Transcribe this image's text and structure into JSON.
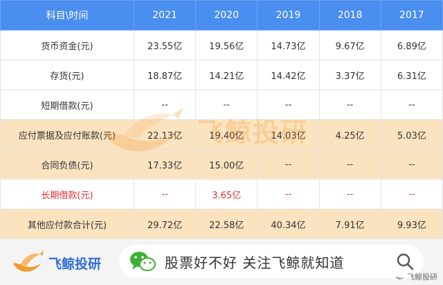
{
  "table": {
    "header": [
      "科目\\时间",
      "2021",
      "2020",
      "2019",
      "2018",
      "2017"
    ],
    "rows": [
      {
        "label": "货币资金(元)",
        "values": [
          "23.55亿",
          "19.56亿",
          "14.73亿",
          "9.67亿",
          "6.89亿"
        ],
        "style": "normal"
      },
      {
        "label": "存货(元)",
        "values": [
          "18.87亿",
          "14.21亿",
          "14.42亿",
          "3.37亿",
          "6.31亿"
        ],
        "style": "normal"
      },
      {
        "label": "短期借款(元)",
        "values": [
          "--",
          "--",
          "--",
          "--",
          "--"
        ],
        "style": "normal"
      },
      {
        "label": "应付票据及应付账款(元)",
        "values": [
          "22.13亿",
          "19.40亿",
          "14.03亿",
          "4.25亿",
          "5.03亿"
        ],
        "style": "alt"
      },
      {
        "label": "合同负债(元)",
        "values": [
          "17.33亿",
          "15.00亿",
          "--",
          "--",
          "--"
        ],
        "style": "alt"
      },
      {
        "label": "长期借款(元)",
        "values": [
          "--",
          "3.65亿",
          "--",
          "--",
          "--"
        ],
        "style": "red"
      },
      {
        "label": "其他应付款合计(元)",
        "values": [
          "29.72亿",
          "22.58亿",
          "40.34亿",
          "7.91亿",
          "9.93亿"
        ],
        "style": "alt"
      }
    ]
  },
  "watermark": {
    "text": "飞鲸投研"
  },
  "footer": {
    "brand": "飞鲸投研",
    "search_text": "股票好不好 关注飞鲸就知道",
    "corner_text": "飞鲸投研"
  },
  "colors": {
    "header_bg": "#4a8ef0",
    "highlight_row": "#fce3c0",
    "red_text": "#e03030",
    "brand_orange": "#f29a2e",
    "brand_blue": "#2f6fd6"
  },
  "icons": [
    "whale-logo-icon",
    "wechat-icon",
    "search-icon"
  ]
}
